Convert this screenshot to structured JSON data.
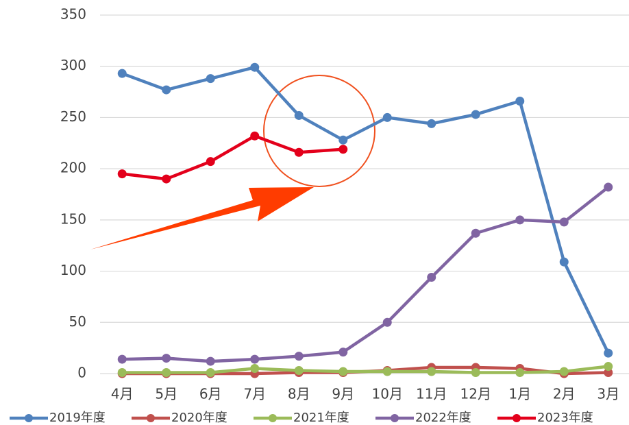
{
  "chart_data": {
    "type": "line",
    "categories": [
      "4月",
      "5月",
      "6月",
      "7月",
      "8月",
      "9月",
      "10月",
      "11月",
      "12月",
      "1月",
      "2月",
      "3月"
    ],
    "series": [
      {
        "name": "2019年度",
        "color": "#4f81bd",
        "values": [
          293,
          277,
          288,
          299,
          252,
          228,
          250,
          244,
          253,
          266,
          109,
          20
        ]
      },
      {
        "name": "2020年度",
        "color": "#c0504d",
        "values": [
          0,
          0,
          0,
          0,
          1,
          1,
          3,
          6,
          6,
          5,
          0,
          1
        ]
      },
      {
        "name": "2021年度",
        "color": "#9bbb59",
        "values": [
          1,
          1,
          1,
          5,
          3,
          2,
          2,
          2,
          1,
          1,
          2,
          7
        ]
      },
      {
        "name": "2022年度",
        "color": "#8064a2",
        "values": [
          14,
          15,
          12,
          14,
          17,
          21,
          50,
          94,
          137,
          150,
          148,
          182
        ]
      },
      {
        "name": "2023年度",
        "color": "#e3001b",
        "values": [
          195,
          190,
          207,
          232,
          216,
          219,
          null,
          null,
          null,
          null,
          null,
          null
        ]
      }
    ],
    "ylim": [
      0,
      350
    ],
    "yticks": [
      0,
      50,
      100,
      150,
      200,
      250,
      300,
      350
    ],
    "grid": true,
    "legend": "bottom"
  }
}
